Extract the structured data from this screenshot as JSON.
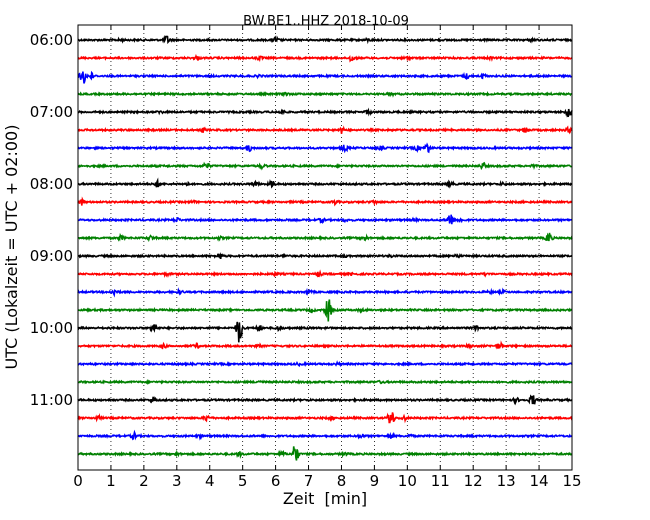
{
  "chart_data": {
    "type": "line",
    "title": "BW.BE1..HHZ 2018-10-09",
    "xlabel": "Zeit  [min]",
    "ylabel": "UTC (Lokalzeit = UTC + 02:00)",
    "xlim": [
      0,
      15
    ],
    "xticks": [
      "0",
      "1",
      "2",
      "3",
      "4",
      "5",
      "6",
      "7",
      "8",
      "9",
      "10",
      "11",
      "12",
      "13",
      "14",
      "15"
    ],
    "grid": "dotted-vertical",
    "hour_labels": [
      "06:00",
      "07:00",
      "08:00",
      "09:00",
      "10:00",
      "11:00"
    ],
    "colors": [
      "#000000",
      "#ff0000",
      "#0000ff",
      "#008000"
    ],
    "series": [
      {
        "label": "06:00",
        "events": [
          [
            1.3,
            1
          ],
          [
            2.7,
            4
          ],
          [
            6.0,
            2.5
          ],
          [
            8.8,
            1
          ],
          [
            13.8,
            1
          ]
        ]
      },
      {
        "label": "",
        "events": [
          [
            3.6,
            2
          ],
          [
            5.5,
            1.5
          ],
          [
            8.3,
            3
          ],
          [
            10.0,
            1
          ],
          [
            12.5,
            1
          ]
        ]
      },
      {
        "label": "",
        "events": [
          [
            0.15,
            9
          ],
          [
            0.4,
            3
          ],
          [
            5.5,
            1
          ],
          [
            11.8,
            2.5
          ],
          [
            12.3,
            2
          ]
        ]
      },
      {
        "label": "",
        "events": [
          [
            6.3,
            1.5
          ],
          [
            9.5,
            1
          ]
        ]
      },
      {
        "label": "07:00",
        "events": [
          [
            2.5,
            1
          ],
          [
            6.2,
            1.5
          ],
          [
            8.8,
            2
          ],
          [
            14.9,
            5
          ]
        ]
      },
      {
        "label": "",
        "events": [
          [
            3.8,
            2
          ],
          [
            8.0,
            3
          ],
          [
            13.6,
            3
          ],
          [
            14.9,
            2
          ]
        ]
      },
      {
        "label": "",
        "events": [
          [
            5.2,
            3
          ],
          [
            8.1,
            3
          ],
          [
            9.2,
            1.5
          ],
          [
            10.6,
            5
          ],
          [
            10.3,
            2
          ]
        ]
      },
      {
        "label": "",
        "events": [
          [
            3.9,
            3
          ],
          [
            5.6,
            2
          ],
          [
            12.3,
            3
          ],
          [
            13.8,
            1
          ]
        ]
      },
      {
        "label": "08:00",
        "events": [
          [
            2.4,
            3
          ],
          [
            3.3,
            1
          ],
          [
            5.4,
            2
          ],
          [
            5.9,
            3
          ],
          [
            11.3,
            2.5
          ],
          [
            12.9,
            1
          ]
        ]
      },
      {
        "label": "",
        "events": [
          [
            0.1,
            3
          ],
          [
            3.5,
            1
          ],
          [
            7.8,
            2
          ],
          [
            9.0,
            1.5
          ]
        ]
      },
      {
        "label": "",
        "events": [
          [
            3.0,
            2
          ],
          [
            7.4,
            2
          ],
          [
            8.1,
            1
          ],
          [
            10.2,
            1
          ],
          [
            11.3,
            8
          ],
          [
            11.6,
            2
          ]
        ]
      },
      {
        "label": "",
        "events": [
          [
            1.3,
            2
          ],
          [
            2.2,
            2
          ],
          [
            4.3,
            1
          ],
          [
            8.7,
            2.5
          ],
          [
            14.3,
            6
          ]
        ]
      },
      {
        "label": "09:00",
        "events": [
          [
            4.3,
            3
          ],
          [
            6.3,
            1
          ],
          [
            8.1,
            1
          ],
          [
            9.5,
            1
          ],
          [
            11.5,
            2
          ]
        ]
      },
      {
        "label": "",
        "events": [
          [
            2.7,
            1
          ],
          [
            6.0,
            1.5
          ],
          [
            7.3,
            2
          ],
          [
            8.3,
            1
          ],
          [
            12.4,
            1
          ]
        ]
      },
      {
        "label": "",
        "events": [
          [
            1.1,
            3
          ],
          [
            3.1,
            1.5
          ],
          [
            7.0,
            1.5
          ],
          [
            12.5,
            1
          ],
          [
            12.9,
            1
          ]
        ]
      },
      {
        "label": "",
        "events": [
          [
            7.6,
            12
          ],
          [
            7.1,
            1.5
          ],
          [
            8.6,
            1
          ]
        ]
      },
      {
        "label": "10:00",
        "events": [
          [
            2.3,
            5
          ],
          [
            4.9,
            16
          ],
          [
            5.5,
            3
          ],
          [
            6.1,
            2
          ],
          [
            12.1,
            2.5
          ]
        ]
      },
      {
        "label": "",
        "events": [
          [
            2.6,
            2
          ],
          [
            3.6,
            2
          ],
          [
            5.5,
            1
          ],
          [
            11.9,
            1.5
          ],
          [
            12.8,
            3
          ]
        ]
      },
      {
        "label": "",
        "events": [
          [
            6.7,
            1
          ],
          [
            7.9,
            1
          ]
        ]
      },
      {
        "label": "",
        "events": [
          [
            5.5,
            1
          ],
          [
            9.2,
            1
          ]
        ]
      },
      {
        "label": "11:00",
        "events": [
          [
            2.3,
            3
          ],
          [
            13.8,
            6
          ],
          [
            13.3,
            2
          ]
        ]
      },
      {
        "label": "",
        "events": [
          [
            0.6,
            2
          ],
          [
            3.9,
            3
          ],
          [
            7.7,
            1
          ],
          [
            9.5,
            10
          ],
          [
            9.9,
            2
          ]
        ]
      },
      {
        "label": "",
        "events": [
          [
            1.7,
            3
          ],
          [
            3.7,
            1
          ],
          [
            8.6,
            2
          ],
          [
            9.5,
            2
          ],
          [
            10.1,
            1
          ]
        ]
      },
      {
        "label": "",
        "events": [
          [
            3.0,
            1
          ],
          [
            4.9,
            2
          ],
          [
            6.6,
            11
          ],
          [
            6.2,
            2
          ],
          [
            8.1,
            1
          ]
        ]
      }
    ]
  }
}
